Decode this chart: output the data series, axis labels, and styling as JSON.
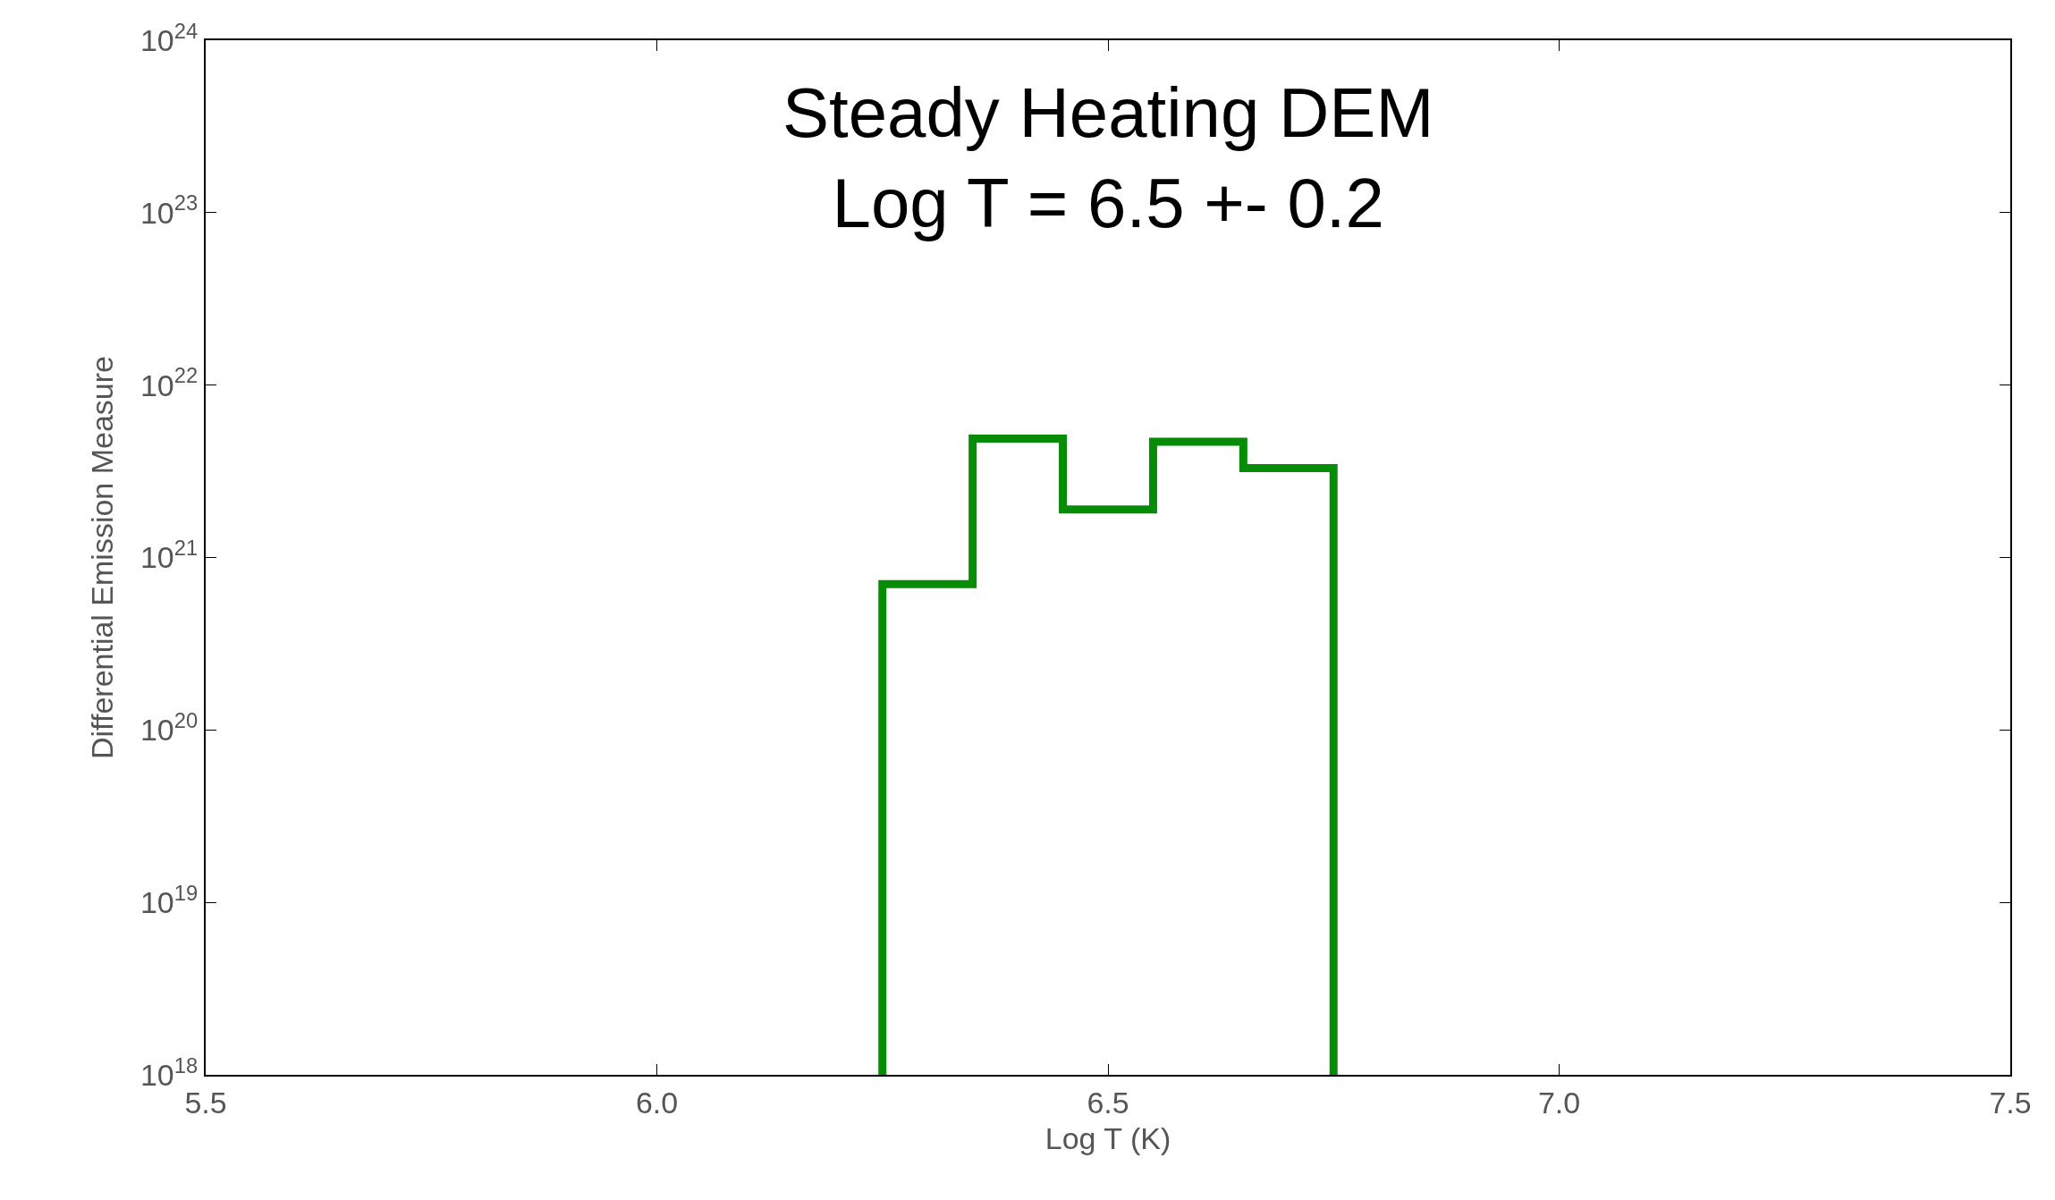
{
  "chart_data": {
    "type": "histogram",
    "title": "Steady Heating DEM",
    "subtitle": "Log T = 6.5 +- 0.2",
    "xlabel": "Log T (K)",
    "ylabel": "Differential Emission Measure",
    "bins": [
      6.25,
      6.35,
      6.45,
      6.55,
      6.65,
      6.75
    ],
    "values": [
      7e+20,
      4.9e+21,
      1.9e+21,
      4.7e+21,
      3.3e+21
    ],
    "color": "#078c07",
    "log": "y",
    "xlim": [
      5.5,
      7.5
    ],
    "xticks": [
      5.5,
      {
        "value": 6,
        "label": "6.0"
      },
      6.5,
      {
        "value": 7,
        "label": "7.0"
      },
      7.5
    ],
    "ylim": [
      1e+18,
      1e+24
    ],
    "yticks": [
      {
        "value": 1e+18,
        "label": "10$^{18}$"
      },
      {
        "value": 1e+19,
        "label": "10$^{19}$"
      },
      {
        "value": 1e+20,
        "label": "10$^{20}$"
      },
      {
        "value": 1e+21,
        "label": "10$^{21}$"
      },
      {
        "value": 1e+22,
        "label": "10$^{22}$"
      },
      {
        "value": 1e+23,
        "label": "10$^{23}$"
      },
      {
        "value": 1e+24,
        "label": "10$^{24}$"
      }
    ]
  }
}
